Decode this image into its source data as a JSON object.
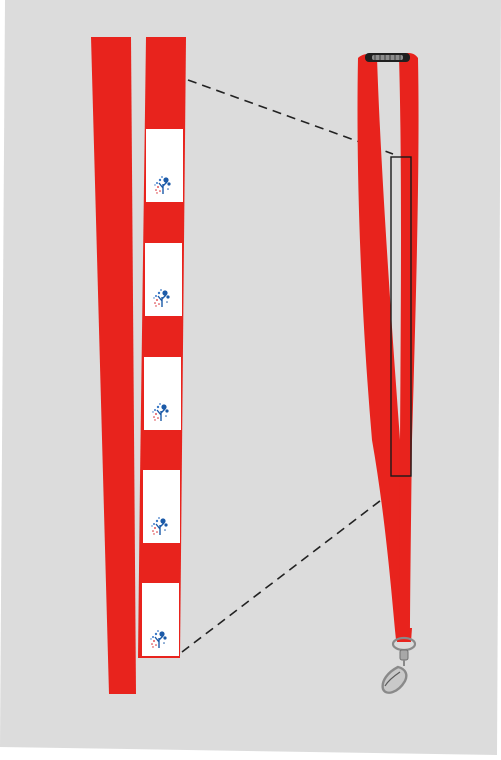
{
  "product": {
    "type": "lanyard",
    "strap_color": "#e8231d",
    "background_color": "#dcdcdc",
    "label_color": "#ffffff",
    "logo_icon": "tree-logo-icon",
    "logo_colors": [
      "#1b5aa8",
      "#d8242b"
    ],
    "label_count": 5,
    "hardware": [
      "breakaway-safety-clasp-icon",
      "swivel-snap-hook-icon"
    ],
    "connector_lines": "dashed"
  }
}
